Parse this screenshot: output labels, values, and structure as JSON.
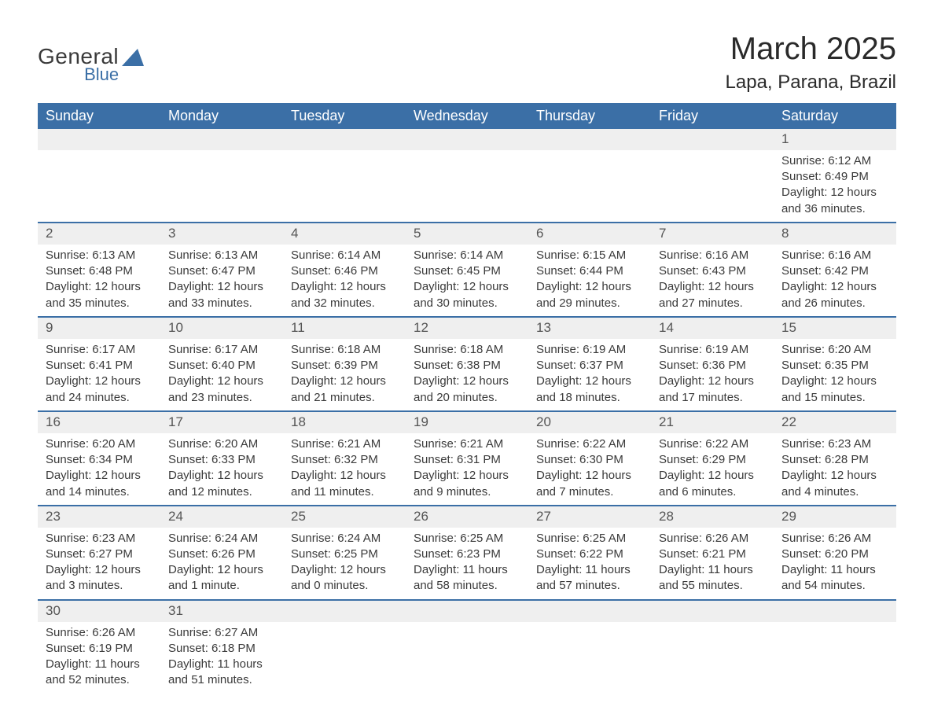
{
  "logo": {
    "general": "General",
    "blue": "Blue",
    "shape_color": "#3b6fa6"
  },
  "header": {
    "title": "March 2025",
    "location": "Lapa, Parana, Brazil"
  },
  "colors": {
    "header_bg": "#3b6fa6",
    "header_text": "#ffffff",
    "daynum_bg": "#efefef",
    "row_divider": "#3b6fa6",
    "body_text": "#3a3a3a"
  },
  "typography": {
    "title_fontsize": 40,
    "location_fontsize": 24,
    "weekday_fontsize": 18,
    "daynum_fontsize": 17,
    "cell_fontsize": 15
  },
  "weekdays": [
    "Sunday",
    "Monday",
    "Tuesday",
    "Wednesday",
    "Thursday",
    "Friday",
    "Saturday"
  ],
  "weeks": [
    [
      null,
      null,
      null,
      null,
      null,
      null,
      {
        "n": "1",
        "sunrise": "Sunrise: 6:12 AM",
        "sunset": "Sunset: 6:49 PM",
        "d1": "Daylight: 12 hours",
        "d2": "and 36 minutes."
      }
    ],
    [
      {
        "n": "2",
        "sunrise": "Sunrise: 6:13 AM",
        "sunset": "Sunset: 6:48 PM",
        "d1": "Daylight: 12 hours",
        "d2": "and 35 minutes."
      },
      {
        "n": "3",
        "sunrise": "Sunrise: 6:13 AM",
        "sunset": "Sunset: 6:47 PM",
        "d1": "Daylight: 12 hours",
        "d2": "and 33 minutes."
      },
      {
        "n": "4",
        "sunrise": "Sunrise: 6:14 AM",
        "sunset": "Sunset: 6:46 PM",
        "d1": "Daylight: 12 hours",
        "d2": "and 32 minutes."
      },
      {
        "n": "5",
        "sunrise": "Sunrise: 6:14 AM",
        "sunset": "Sunset: 6:45 PM",
        "d1": "Daylight: 12 hours",
        "d2": "and 30 minutes."
      },
      {
        "n": "6",
        "sunrise": "Sunrise: 6:15 AM",
        "sunset": "Sunset: 6:44 PM",
        "d1": "Daylight: 12 hours",
        "d2": "and 29 minutes."
      },
      {
        "n": "7",
        "sunrise": "Sunrise: 6:16 AM",
        "sunset": "Sunset: 6:43 PM",
        "d1": "Daylight: 12 hours",
        "d2": "and 27 minutes."
      },
      {
        "n": "8",
        "sunrise": "Sunrise: 6:16 AM",
        "sunset": "Sunset: 6:42 PM",
        "d1": "Daylight: 12 hours",
        "d2": "and 26 minutes."
      }
    ],
    [
      {
        "n": "9",
        "sunrise": "Sunrise: 6:17 AM",
        "sunset": "Sunset: 6:41 PM",
        "d1": "Daylight: 12 hours",
        "d2": "and 24 minutes."
      },
      {
        "n": "10",
        "sunrise": "Sunrise: 6:17 AM",
        "sunset": "Sunset: 6:40 PM",
        "d1": "Daylight: 12 hours",
        "d2": "and 23 minutes."
      },
      {
        "n": "11",
        "sunrise": "Sunrise: 6:18 AM",
        "sunset": "Sunset: 6:39 PM",
        "d1": "Daylight: 12 hours",
        "d2": "and 21 minutes."
      },
      {
        "n": "12",
        "sunrise": "Sunrise: 6:18 AM",
        "sunset": "Sunset: 6:38 PM",
        "d1": "Daylight: 12 hours",
        "d2": "and 20 minutes."
      },
      {
        "n": "13",
        "sunrise": "Sunrise: 6:19 AM",
        "sunset": "Sunset: 6:37 PM",
        "d1": "Daylight: 12 hours",
        "d2": "and 18 minutes."
      },
      {
        "n": "14",
        "sunrise": "Sunrise: 6:19 AM",
        "sunset": "Sunset: 6:36 PM",
        "d1": "Daylight: 12 hours",
        "d2": "and 17 minutes."
      },
      {
        "n": "15",
        "sunrise": "Sunrise: 6:20 AM",
        "sunset": "Sunset: 6:35 PM",
        "d1": "Daylight: 12 hours",
        "d2": "and 15 minutes."
      }
    ],
    [
      {
        "n": "16",
        "sunrise": "Sunrise: 6:20 AM",
        "sunset": "Sunset: 6:34 PM",
        "d1": "Daylight: 12 hours",
        "d2": "and 14 minutes."
      },
      {
        "n": "17",
        "sunrise": "Sunrise: 6:20 AM",
        "sunset": "Sunset: 6:33 PM",
        "d1": "Daylight: 12 hours",
        "d2": "and 12 minutes."
      },
      {
        "n": "18",
        "sunrise": "Sunrise: 6:21 AM",
        "sunset": "Sunset: 6:32 PM",
        "d1": "Daylight: 12 hours",
        "d2": "and 11 minutes."
      },
      {
        "n": "19",
        "sunrise": "Sunrise: 6:21 AM",
        "sunset": "Sunset: 6:31 PM",
        "d1": "Daylight: 12 hours",
        "d2": "and 9 minutes."
      },
      {
        "n": "20",
        "sunrise": "Sunrise: 6:22 AM",
        "sunset": "Sunset: 6:30 PM",
        "d1": "Daylight: 12 hours",
        "d2": "and 7 minutes."
      },
      {
        "n": "21",
        "sunrise": "Sunrise: 6:22 AM",
        "sunset": "Sunset: 6:29 PM",
        "d1": "Daylight: 12 hours",
        "d2": "and 6 minutes."
      },
      {
        "n": "22",
        "sunrise": "Sunrise: 6:23 AM",
        "sunset": "Sunset: 6:28 PM",
        "d1": "Daylight: 12 hours",
        "d2": "and 4 minutes."
      }
    ],
    [
      {
        "n": "23",
        "sunrise": "Sunrise: 6:23 AM",
        "sunset": "Sunset: 6:27 PM",
        "d1": "Daylight: 12 hours",
        "d2": "and 3 minutes."
      },
      {
        "n": "24",
        "sunrise": "Sunrise: 6:24 AM",
        "sunset": "Sunset: 6:26 PM",
        "d1": "Daylight: 12 hours",
        "d2": "and 1 minute."
      },
      {
        "n": "25",
        "sunrise": "Sunrise: 6:24 AM",
        "sunset": "Sunset: 6:25 PM",
        "d1": "Daylight: 12 hours",
        "d2": "and 0 minutes."
      },
      {
        "n": "26",
        "sunrise": "Sunrise: 6:25 AM",
        "sunset": "Sunset: 6:23 PM",
        "d1": "Daylight: 11 hours",
        "d2": "and 58 minutes."
      },
      {
        "n": "27",
        "sunrise": "Sunrise: 6:25 AM",
        "sunset": "Sunset: 6:22 PM",
        "d1": "Daylight: 11 hours",
        "d2": "and 57 minutes."
      },
      {
        "n": "28",
        "sunrise": "Sunrise: 6:26 AM",
        "sunset": "Sunset: 6:21 PM",
        "d1": "Daylight: 11 hours",
        "d2": "and 55 minutes."
      },
      {
        "n": "29",
        "sunrise": "Sunrise: 6:26 AM",
        "sunset": "Sunset: 6:20 PM",
        "d1": "Daylight: 11 hours",
        "d2": "and 54 minutes."
      }
    ],
    [
      {
        "n": "30",
        "sunrise": "Sunrise: 6:26 AM",
        "sunset": "Sunset: 6:19 PM",
        "d1": "Daylight: 11 hours",
        "d2": "and 52 minutes."
      },
      {
        "n": "31",
        "sunrise": "Sunrise: 6:27 AM",
        "sunset": "Sunset: 6:18 PM",
        "d1": "Daylight: 11 hours",
        "d2": "and 51 minutes."
      },
      null,
      null,
      null,
      null,
      null
    ]
  ]
}
